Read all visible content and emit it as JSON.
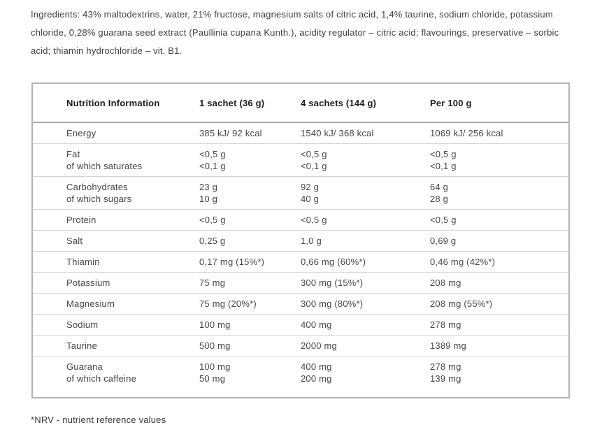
{
  "ingredients": {
    "text": "Ingredients: 43% maltodextrins, water, 21% fructose, magnesium salts of citric acid, 1,4% taurine, sodium chloride, potassium chloride, 0,28% guarana seed extract (Paullinia cupana Kunth.), acidity regulator – citric acid; flavourings, preservative – sorbic acid; thiamin hydrochloride – vit. B1."
  },
  "nutrition_table": {
    "headers": [
      "Nutrition Information",
      "1 sachet (36 g)",
      "4 sachets (144 g)",
      "Per 100 g"
    ],
    "rows": [
      {
        "label": [
          "Energy"
        ],
        "per_sachet": [
          "385 kJ/ 92 kcal"
        ],
        "per_4_sachets": [
          "1540 kJ/ 368 kcal"
        ],
        "per_100g": [
          "1069 kJ/ 256 kcal"
        ]
      },
      {
        "label": [
          "Fat",
          "of which saturates"
        ],
        "per_sachet": [
          "<0,5 g",
          "<0,1 g"
        ],
        "per_4_sachets": [
          "<0,5 g",
          "<0,1 g"
        ],
        "per_100g": [
          "<0,5 g",
          "<0,1 g"
        ]
      },
      {
        "label": [
          "Carbohydrates",
          "of which sugars"
        ],
        "per_sachet": [
          "23 g",
          "10 g"
        ],
        "per_4_sachets": [
          "92 g",
          "40 g"
        ],
        "per_100g": [
          "64 g",
          "28 g"
        ]
      },
      {
        "label": [
          "Protein"
        ],
        "per_sachet": [
          "<0,5 g"
        ],
        "per_4_sachets": [
          "<0,5 g"
        ],
        "per_100g": [
          "<0,5 g"
        ]
      },
      {
        "label": [
          "Salt"
        ],
        "per_sachet": [
          "0,25 g"
        ],
        "per_4_sachets": [
          "1,0 g"
        ],
        "per_100g": [
          "0,69 g"
        ]
      },
      {
        "label": [
          "Thiamin"
        ],
        "per_sachet": [
          "0,17 mg (15%*)"
        ],
        "per_4_sachets": [
          "0,66 mg (60%*)"
        ],
        "per_100g": [
          "0,46 mg (42%*)"
        ]
      },
      {
        "label": [
          "Potassium"
        ],
        "per_sachet": [
          "75 mg"
        ],
        "per_4_sachets": [
          "300 mg (15%*)"
        ],
        "per_100g": [
          "208 mg"
        ]
      },
      {
        "label": [
          "Magnesium"
        ],
        "per_sachet": [
          "75 mg (20%*)"
        ],
        "per_4_sachets": [
          "300 mg (80%*)"
        ],
        "per_100g": [
          "208 mg (55%*)"
        ]
      },
      {
        "label": [
          "Sodium"
        ],
        "per_sachet": [
          "100 mg"
        ],
        "per_4_sachets": [
          "400 mg"
        ],
        "per_100g": [
          "278 mg"
        ]
      },
      {
        "label": [
          "Taurine"
        ],
        "per_sachet": [
          "500 mg"
        ],
        "per_4_sachets": [
          "2000 mg"
        ],
        "per_100g": [
          "1389 mg"
        ]
      },
      {
        "label": [
          "Guarana",
          "of which caffeine"
        ],
        "per_sachet": [
          "100 mg",
          "50 mg"
        ],
        "per_4_sachets": [
          "400 mg",
          "200 mg"
        ],
        "per_100g": [
          "278 mg",
          "139 mg"
        ]
      }
    ]
  },
  "footnote": {
    "text": "*NRV - nutrient reference values"
  },
  "colors": {
    "text": "#3f3f3f",
    "table_text": "#464646",
    "header_text": "#1c1c1c",
    "outer_border": "#b4b4b4",
    "header_rule": "#a8a8a8",
    "row_rule": "#d4d4d4",
    "background": "#ffffff"
  }
}
